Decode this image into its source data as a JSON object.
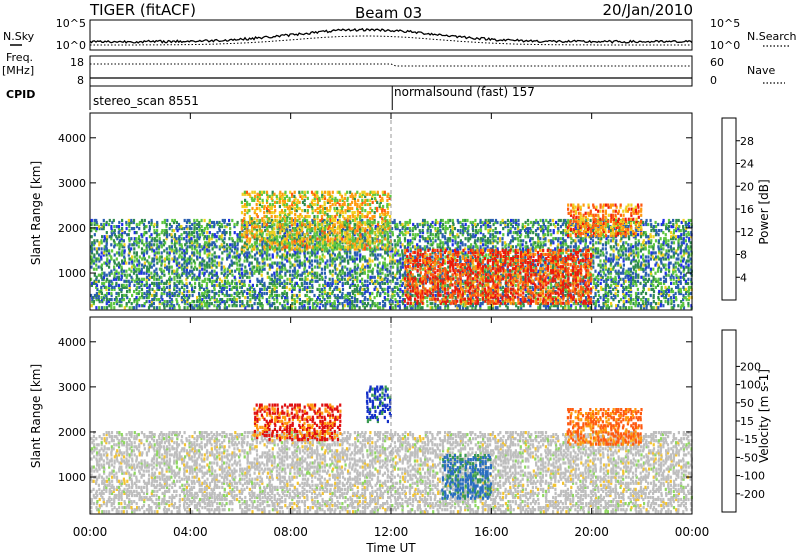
{
  "header": {
    "title": "TIGER (fitACF)",
    "beam": "Beam 03",
    "date": "20/Jan/2010"
  },
  "strips": {
    "nsky": {
      "label": "N.Sky",
      "ticks": [
        "10^5",
        "10^0"
      ],
      "right_label": "N.Search",
      "right_ticks": [
        "10^5",
        "10^0"
      ]
    },
    "freq": {
      "label_line1": "Freq.",
      "label_line2": "[MHz]",
      "ticks": [
        "18",
        "8"
      ],
      "right_label": "Nave",
      "right_ticks": [
        "60",
        "0"
      ]
    },
    "cpid": {
      "label": "CPID",
      "segments": [
        "stereo_scan 8551",
        "normalsound (fast) 157"
      ]
    }
  },
  "colors": {
    "power": [
      "#1e2ee8",
      "#2a5fb0",
      "#2f8a4e",
      "#5cc640",
      "#f0d020",
      "#ff9a10",
      "#ff5a10",
      "#ee1a0a"
    ],
    "velocity": [
      "#e01010",
      "#ff5a10",
      "#ff9a10",
      "#f4c430",
      "#bebebe",
      "#b0b0b0",
      "#8fd860",
      "#3a9a50",
      "#2a6ec0",
      "#1430c8"
    ]
  },
  "chart_data": [
    {
      "type": "heatmap",
      "title": "",
      "xlabel": "",
      "ylabel": "Slant Range [km]",
      "xlim": [
        "00:00",
        "24:00"
      ],
      "ylim": [
        180,
        4550
      ],
      "xticks": [
        "00:00",
        "04:00",
        "08:00",
        "12:00",
        "16:00",
        "20:00",
        "00:00"
      ],
      "yticks": [
        "1000",
        "2000",
        "3000",
        "4000"
      ],
      "colorbar": {
        "label": "Power [dB]",
        "levels": [
          0,
          4,
          8,
          12,
          16,
          20,
          24,
          28,
          32
        ],
        "tick_labels": [
          "4",
          "8",
          "12",
          "16",
          "20",
          "24",
          "28"
        ]
      },
      "grid": false,
      "echo_regions": [
        {
          "hours": [
            0,
            24
          ],
          "range_km": [
            200,
            2200
          ],
          "level_db": 10
        },
        {
          "hours": [
            6,
            12
          ],
          "range_km": [
            1500,
            2800
          ],
          "level_db": 18
        },
        {
          "hours": [
            12.5,
            20
          ],
          "range_km": [
            300,
            1500
          ],
          "level_db": 28
        },
        {
          "hours": [
            19,
            22
          ],
          "range_km": [
            1800,
            2500
          ],
          "level_db": 24
        }
      ]
    },
    {
      "type": "heatmap",
      "title": "",
      "xlabel": "Time UT",
      "ylabel": "Slant Range [km]",
      "xlim": [
        "00:00",
        "24:00"
      ],
      "ylim": [
        180,
        4550
      ],
      "xticks": [
        "00:00",
        "04:00",
        "08:00",
        "12:00",
        "16:00",
        "20:00",
        "00:00"
      ],
      "yticks": [
        "1000",
        "2000",
        "3000",
        "4000"
      ],
      "colorbar": {
        "label": "Velocity [m s-1]",
        "levels": [
          -250,
          -200,
          -100,
          -50,
          -15,
          0,
          15,
          50,
          100,
          200,
          250
        ],
        "tick_labels": [
          "-200",
          "-100",
          "-50",
          "-15",
          "15",
          "50",
          "100",
          "200"
        ]
      },
      "grid": false,
      "echo_regions": [
        {
          "hours": [
            0,
            24
          ],
          "range_km": [
            200,
            2000
          ],
          "velocity": 0
        },
        {
          "hours": [
            6.5,
            10
          ],
          "range_km": [
            1800,
            2600
          ],
          "velocity": -200
        },
        {
          "hours": [
            11,
            12
          ],
          "range_km": [
            2200,
            3000
          ],
          "velocity": 200
        },
        {
          "hours": [
            14,
            16
          ],
          "range_km": [
            500,
            1500
          ],
          "velocity": 80
        },
        {
          "hours": [
            19,
            22
          ],
          "range_km": [
            1700,
            2500
          ],
          "velocity": -150
        }
      ]
    }
  ]
}
